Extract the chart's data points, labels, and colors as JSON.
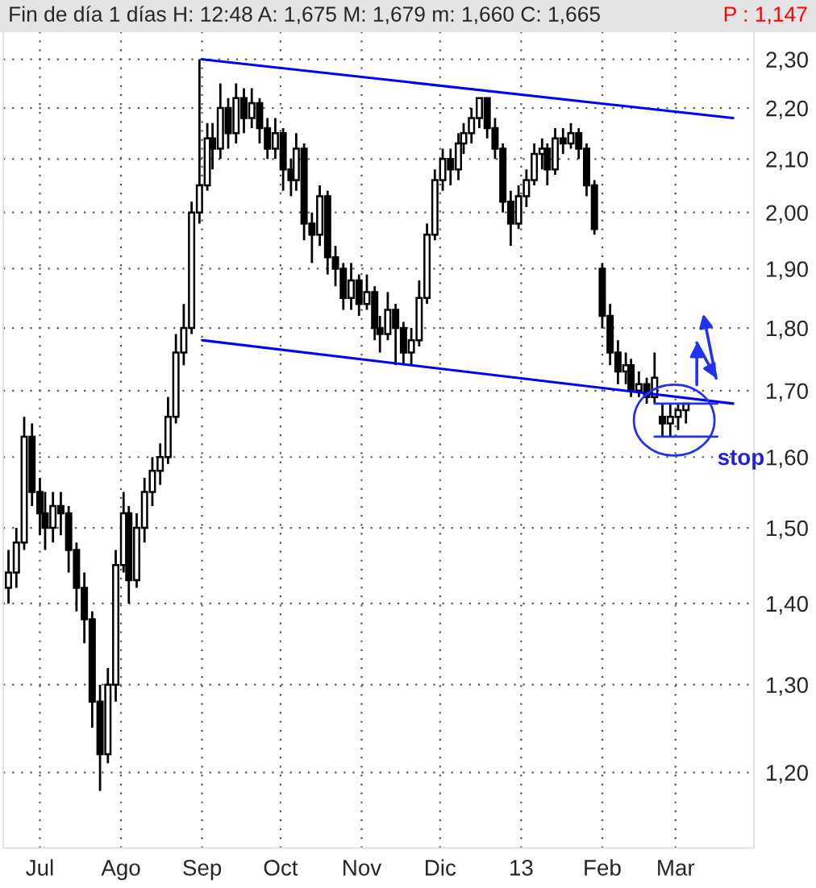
{
  "chart_data": {
    "type": "candlestick",
    "title": "Fin de día 1 días H: 12:48 A: 1,675 M: 1,679 m: 1,660 C: 1,665",
    "subtitle": "P : 1,147",
    "x": [
      "2012-06-19",
      "2012-06-22",
      "2012-06-25",
      "2012-06-28",
      "2012-07-01",
      "2012-07-03",
      "2012-07-06",
      "2012-07-09",
      "2012-07-12",
      "2012-07-15",
      "2012-07-18",
      "2012-07-21",
      "2012-07-24",
      "2012-07-27",
      "2012-07-30",
      "2012-08-02",
      "2012-08-04",
      "2012-08-07",
      "2012-08-10",
      "2012-08-13",
      "2012-08-16",
      "2012-08-19",
      "2012-08-22",
      "2012-08-25",
      "2012-08-28",
      "2012-08-31",
      "2012-09-03",
      "2012-09-05",
      "2012-09-08",
      "2012-09-11",
      "2012-09-14",
      "2012-09-17",
      "2012-09-20",
      "2012-09-23",
      "2012-09-26",
      "2012-09-29",
      "2012-10-02",
      "2012-10-05",
      "2012-10-07",
      "2012-10-10",
      "2012-10-13",
      "2012-10-16",
      "2012-10-19",
      "2012-10-22",
      "2012-10-25",
      "2012-10-28",
      "2012-10-31",
      "2012-11-03",
      "2012-11-06",
      "2012-11-08",
      "2012-11-11",
      "2012-11-14",
      "2012-11-17",
      "2012-11-20",
      "2012-11-23",
      "2012-11-26",
      "2012-11-29",
      "2012-12-02",
      "2012-12-05",
      "2012-12-08",
      "2012-12-10",
      "2012-12-13",
      "2012-12-16",
      "2012-12-19",
      "2012-12-22",
      "2012-12-25",
      "2012-12-28",
      "2012-12-31",
      "2013-01-03",
      "2013-01-06",
      "2013-01-09",
      "2013-01-11",
      "2013-01-14",
      "2013-01-17",
      "2013-01-20",
      "2013-01-23",
      "2013-01-26",
      "2013-01-29",
      "2013-02-01",
      "2013-02-04",
      "2013-02-07",
      "2013-02-10",
      "2013-02-12",
      "2013-02-15",
      "2013-02-18",
      "2013-02-21",
      "2013-02-24",
      "2013-02-27",
      "2013-03-02",
      "2013-03-05"
    ],
    "ohlc": [
      [
        1.42,
        1.47,
        1.4,
        1.44
      ],
      [
        1.44,
        1.5,
        1.42,
        1.48
      ],
      [
        1.48,
        1.66,
        1.47,
        1.63
      ],
      [
        1.63,
        1.65,
        1.53,
        1.55
      ],
      [
        1.55,
        1.57,
        1.49,
        1.52
      ],
      [
        1.52,
        1.55,
        1.47,
        1.5
      ],
      [
        1.5,
        1.55,
        1.48,
        1.53
      ],
      [
        1.53,
        1.55,
        1.49,
        1.52
      ],
      [
        1.52,
        1.53,
        1.44,
        1.47
      ],
      [
        1.47,
        1.48,
        1.39,
        1.42
      ],
      [
        1.42,
        1.44,
        1.35,
        1.38
      ],
      [
        1.38,
        1.39,
        1.25,
        1.28
      ],
      [
        1.28,
        1.3,
        1.18,
        1.22
      ],
      [
        1.22,
        1.32,
        1.21,
        1.3
      ],
      [
        1.3,
        1.47,
        1.28,
        1.45
      ],
      [
        1.45,
        1.55,
        1.44,
        1.52
      ],
      [
        1.52,
        1.53,
        1.4,
        1.43
      ],
      [
        1.43,
        1.52,
        1.42,
        1.5
      ],
      [
        1.5,
        1.57,
        1.48,
        1.55
      ],
      [
        1.55,
        1.6,
        1.53,
        1.58
      ],
      [
        1.58,
        1.62,
        1.56,
        1.6
      ],
      [
        1.6,
        1.69,
        1.59,
        1.66
      ],
      [
        1.66,
        1.79,
        1.65,
        1.76
      ],
      [
        1.76,
        1.84,
        1.74,
        1.8
      ],
      [
        1.8,
        2.02,
        1.79,
        2.0
      ],
      [
        2.0,
        2.3,
        1.98,
        2.05
      ],
      [
        2.05,
        2.17,
        2.04,
        2.14
      ],
      [
        2.14,
        2.17,
        2.08,
        2.12
      ],
      [
        2.12,
        2.25,
        2.1,
        2.2
      ],
      [
        2.2,
        2.22,
        2.12,
        2.15
      ],
      [
        2.15,
        2.25,
        2.13,
        2.22
      ],
      [
        2.22,
        2.24,
        2.15,
        2.18
      ],
      [
        2.18,
        2.24,
        2.16,
        2.21
      ],
      [
        2.21,
        2.22,
        2.13,
        2.16
      ],
      [
        2.16,
        2.18,
        2.1,
        2.12
      ],
      [
        2.12,
        2.18,
        2.1,
        2.15
      ],
      [
        2.15,
        2.16,
        2.04,
        2.08
      ],
      [
        2.08,
        2.1,
        2.03,
        2.06
      ],
      [
        2.06,
        2.15,
        2.04,
        2.12
      ],
      [
        2.12,
        2.13,
        1.95,
        1.98
      ],
      [
        1.98,
        2.0,
        1.91,
        1.96
      ],
      [
        1.96,
        2.05,
        1.94,
        2.03
      ],
      [
        2.03,
        2.04,
        1.89,
        1.92
      ],
      [
        1.92,
        1.94,
        1.87,
        1.9
      ],
      [
        1.9,
        1.91,
        1.83,
        1.85
      ],
      [
        1.85,
        1.91,
        1.83,
        1.88
      ],
      [
        1.88,
        1.89,
        1.82,
        1.84
      ],
      [
        1.84,
        1.89,
        1.83,
        1.86
      ],
      [
        1.86,
        1.87,
        1.78,
        1.8
      ],
      [
        1.8,
        1.82,
        1.76,
        1.79
      ],
      [
        1.79,
        1.86,
        1.78,
        1.83
      ],
      [
        1.83,
        1.84,
        1.74,
        1.8
      ],
      [
        1.8,
        1.81,
        1.74,
        1.76
      ],
      [
        1.76,
        1.8,
        1.74,
        1.78
      ],
      [
        1.78,
        1.88,
        1.77,
        1.85
      ],
      [
        1.85,
        1.98,
        1.84,
        1.96
      ],
      [
        1.96,
        2.08,
        1.95,
        2.06
      ],
      [
        2.06,
        2.12,
        2.04,
        2.1
      ],
      [
        2.1,
        2.12,
        2.05,
        2.08
      ],
      [
        2.08,
        2.15,
        2.06,
        2.13
      ],
      [
        2.13,
        2.17,
        2.11,
        2.15
      ],
      [
        2.15,
        2.2,
        2.13,
        2.18
      ],
      [
        2.18,
        2.22,
        2.16,
        2.22
      ],
      [
        2.22,
        2.22,
        2.14,
        2.16
      ],
      [
        2.16,
        2.18,
        2.1,
        2.12
      ],
      [
        2.12,
        2.13,
        2.0,
        2.02
      ],
      [
        2.02,
        2.04,
        1.94,
        1.98
      ],
      [
        1.98,
        2.05,
        1.97,
        2.03
      ],
      [
        2.03,
        2.08,
        2.01,
        2.06
      ],
      [
        2.06,
        2.13,
        2.05,
        2.11
      ],
      [
        2.11,
        2.14,
        2.08,
        2.12
      ],
      [
        2.12,
        2.13,
        2.05,
        2.08
      ],
      [
        2.08,
        2.16,
        2.07,
        2.14
      ],
      [
        2.14,
        2.16,
        2.11,
        2.13
      ],
      [
        2.13,
        2.17,
        2.12,
        2.15
      ],
      [
        2.15,
        2.16,
        2.1,
        2.12
      ],
      [
        2.12,
        2.13,
        2.03,
        2.05
      ],
      [
        2.05,
        2.06,
        1.96,
        1.97
      ],
      [
        1.9,
        1.91,
        1.8,
        1.82
      ],
      [
        1.82,
        1.84,
        1.74,
        1.76
      ],
      [
        1.76,
        1.78,
        1.71,
        1.73
      ],
      [
        1.73,
        1.76,
        1.71,
        1.74
      ],
      [
        1.74,
        1.75,
        1.69,
        1.7
      ],
      [
        1.7,
        1.73,
        1.69,
        1.71
      ],
      [
        1.71,
        1.72,
        1.68,
        1.69
      ],
      [
        1.69,
        1.76,
        1.68,
        1.72
      ],
      [
        1.66,
        1.68,
        1.63,
        1.65
      ],
      [
        1.65,
        1.68,
        1.63,
        1.66
      ],
      [
        1.66,
        1.68,
        1.64,
        1.67
      ],
      [
        1.67,
        1.68,
        1.65,
        1.68
      ]
    ],
    "series": [
      {
        "type": "line",
        "color": "#0000ff",
        "x": [
          "2012-09-01",
          "2013-03-23"
        ],
        "values": [
          2.3,
          2.18
        ]
      },
      {
        "type": "line",
        "color": "#0000ff",
        "x": [
          "2012-09-01",
          "2013-03-23"
        ],
        "values": [
          1.78,
          1.68
        ]
      }
    ],
    "annotations": [
      "stop"
    ],
    "log": "y",
    "xlim": [
      "2012-06-17",
      "2013-03-31"
    ],
    "xticks": [
      {
        "value": "2012-07-01",
        "label": "Jul"
      },
      {
        "value": "2012-08-01",
        "label": "Ago"
      },
      {
        "value": "2012-09-01",
        "label": "Sep"
      },
      {
        "value": "2012-10-01",
        "label": "Oct"
      },
      {
        "value": "2012-11-01",
        "label": "Nov"
      },
      {
        "value": "2012-12-01",
        "label": "Dic"
      },
      {
        "value": "2013-01-01",
        "label": "13"
      },
      {
        "value": "2013-02-01",
        "label": "Feb"
      },
      {
        "value": "2013-03-01",
        "label": "Mar"
      }
    ],
    "ylim": [
      1.12,
      2.36
    ],
    "yticks": [
      {
        "value": 1.2,
        "label": "1,20"
      },
      {
        "value": 1.3,
        "label": "1,30"
      },
      {
        "value": 1.4,
        "label": "1,40"
      },
      {
        "value": 1.5,
        "label": "1,50"
      },
      {
        "value": 1.6,
        "label": "1,60"
      },
      {
        "value": 1.7,
        "label": "1,70"
      },
      {
        "value": 1.8,
        "label": "1,80"
      },
      {
        "value": 1.9,
        "label": "1,90"
      },
      {
        "value": 2.0,
        "label": "2,00"
      },
      {
        "value": 2.1,
        "label": "2,10"
      },
      {
        "value": 2.2,
        "label": "2,20"
      },
      {
        "value": 2.3,
        "label": "2,30"
      }
    ],
    "grid": true,
    "legend": false
  }
}
